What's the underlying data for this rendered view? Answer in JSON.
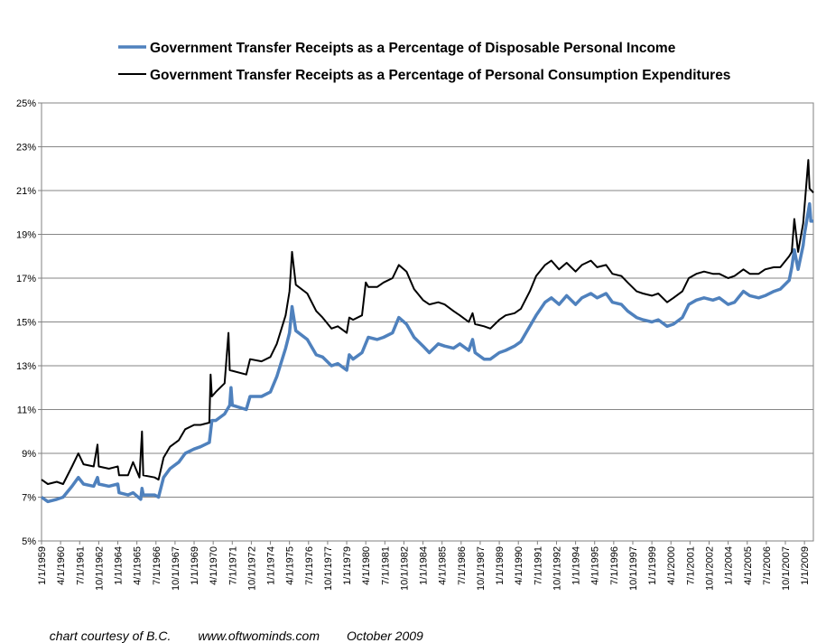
{
  "chart_data": {
    "type": "line",
    "title": "",
    "xlabel": "",
    "ylabel": "",
    "ylim": [
      5,
      25
    ],
    "yticks": [
      "5%",
      "7%",
      "9%",
      "11%",
      "13%",
      "15%",
      "17%",
      "19%",
      "21%",
      "23%",
      "25%"
    ],
    "xrange": [
      "1959-01",
      "2009-08"
    ],
    "xticks": [
      "1/1/1959",
      "4/1/1960",
      "7/1/1961",
      "10/1/1962",
      "1/1/1964",
      "4/1/1965",
      "7/1/1966",
      "10/1/1967",
      "1/1/1969",
      "4/1/1970",
      "7/1/1971",
      "10/1/1972",
      "1/1/1974",
      "4/1/1975",
      "7/1/1976",
      "10/1/1977",
      "1/1/1979",
      "4/1/1980",
      "7/1/1981",
      "10/1/1982",
      "1/1/1984",
      "4/1/1985",
      "7/1/1986",
      "10/1/1987",
      "1/1/1989",
      "4/1/1990",
      "7/1/1991",
      "10/1/1992",
      "1/1/1994",
      "4/1/1995",
      "7/1/1996",
      "10/1/1997",
      "1/1/1999",
      "4/1/2000",
      "7/1/2001",
      "10/1/2002",
      "1/1/2004",
      "4/1/2005",
      "7/1/2006",
      "10/1/2007",
      "1/1/2009"
    ],
    "grid": true,
    "legend_position": "top",
    "series": [
      {
        "name": "Government Transfer Receipts as a Percentage of Disposable Personal Income",
        "color": "#4f81bd",
        "points": [
          [
            "1959-01",
            7.0
          ],
          [
            "1959-06",
            6.8
          ],
          [
            "1960-01",
            6.9
          ],
          [
            "1960-06",
            7.0
          ],
          [
            "1961-01",
            7.5
          ],
          [
            "1961-06",
            7.9
          ],
          [
            "1961-10",
            7.6
          ],
          [
            "1962-06",
            7.5
          ],
          [
            "1962-09",
            7.9
          ],
          [
            "1962-10",
            7.6
          ],
          [
            "1963-06",
            7.5
          ],
          [
            "1964-01",
            7.6
          ],
          [
            "1964-02",
            7.2
          ],
          [
            "1964-09",
            7.1
          ],
          [
            "1965-01",
            7.2
          ],
          [
            "1965-07",
            6.9
          ],
          [
            "1965-08",
            7.4
          ],
          [
            "1965-09",
            7.1
          ],
          [
            "1966-06",
            7.1
          ],
          [
            "1966-09",
            7.0
          ],
          [
            "1967-01",
            7.9
          ],
          [
            "1967-06",
            8.3
          ],
          [
            "1968-01",
            8.6
          ],
          [
            "1968-06",
            9.0
          ],
          [
            "1969-01",
            9.2
          ],
          [
            "1969-06",
            9.3
          ],
          [
            "1970-01",
            9.5
          ],
          [
            "1970-03",
            10.5
          ],
          [
            "1970-06",
            10.5
          ],
          [
            "1971-01",
            10.8
          ],
          [
            "1971-05",
            11.2
          ],
          [
            "1971-06",
            12.0
          ],
          [
            "1971-07",
            11.2
          ],
          [
            "1972-06",
            11.0
          ],
          [
            "1972-09",
            11.6
          ],
          [
            "1973-06",
            11.6
          ],
          [
            "1974-01",
            11.8
          ],
          [
            "1974-06",
            12.5
          ],
          [
            "1975-01",
            13.8
          ],
          [
            "1975-04",
            14.5
          ],
          [
            "1975-06",
            15.7
          ],
          [
            "1975-09",
            14.6
          ],
          [
            "1976-06",
            14.2
          ],
          [
            "1977-01",
            13.5
          ],
          [
            "1977-06",
            13.4
          ],
          [
            "1978-01",
            13.0
          ],
          [
            "1978-06",
            13.1
          ],
          [
            "1979-01",
            12.8
          ],
          [
            "1979-03",
            13.5
          ],
          [
            "1979-06",
            13.3
          ],
          [
            "1980-01",
            13.6
          ],
          [
            "1980-06",
            14.3
          ],
          [
            "1981-01",
            14.2
          ],
          [
            "1981-06",
            14.3
          ],
          [
            "1982-01",
            14.5
          ],
          [
            "1982-06",
            15.2
          ],
          [
            "1982-12",
            14.9
          ],
          [
            "1983-06",
            14.3
          ],
          [
            "1984-01",
            13.9
          ],
          [
            "1984-06",
            13.6
          ],
          [
            "1985-01",
            14.0
          ],
          [
            "1985-06",
            13.9
          ],
          [
            "1986-01",
            13.8
          ],
          [
            "1986-06",
            14.0
          ],
          [
            "1987-01",
            13.7
          ],
          [
            "1987-04",
            14.2
          ],
          [
            "1987-06",
            13.6
          ],
          [
            "1988-01",
            13.3
          ],
          [
            "1988-06",
            13.3
          ],
          [
            "1989-01",
            13.6
          ],
          [
            "1989-06",
            13.7
          ],
          [
            "1990-01",
            13.9
          ],
          [
            "1990-06",
            14.1
          ],
          [
            "1991-01",
            14.8
          ],
          [
            "1991-06",
            15.3
          ],
          [
            "1992-01",
            15.9
          ],
          [
            "1992-06",
            16.1
          ],
          [
            "1992-12",
            15.8
          ],
          [
            "1993-06",
            16.2
          ],
          [
            "1994-01",
            15.8
          ],
          [
            "1994-06",
            16.1
          ],
          [
            "1995-01",
            16.3
          ],
          [
            "1995-06",
            16.1
          ],
          [
            "1996-01",
            16.3
          ],
          [
            "1996-06",
            15.9
          ],
          [
            "1997-01",
            15.8
          ],
          [
            "1997-06",
            15.5
          ],
          [
            "1998-01",
            15.2
          ],
          [
            "1998-06",
            15.1
          ],
          [
            "1999-01",
            15.0
          ],
          [
            "1999-06",
            15.1
          ],
          [
            "2000-01",
            14.8
          ],
          [
            "2000-06",
            14.9
          ],
          [
            "2001-01",
            15.2
          ],
          [
            "2001-06",
            15.8
          ],
          [
            "2001-12",
            16.0
          ],
          [
            "2002-06",
            16.1
          ],
          [
            "2003-01",
            16.0
          ],
          [
            "2003-06",
            16.1
          ],
          [
            "2004-01",
            15.8
          ],
          [
            "2004-06",
            15.9
          ],
          [
            "2005-01",
            16.4
          ],
          [
            "2005-06",
            16.2
          ],
          [
            "2006-01",
            16.1
          ],
          [
            "2006-06",
            16.2
          ],
          [
            "2007-01",
            16.4
          ],
          [
            "2007-06",
            16.5
          ],
          [
            "2008-01",
            16.9
          ],
          [
            "2008-03",
            17.5
          ],
          [
            "2008-05",
            18.3
          ],
          [
            "2008-08",
            17.4
          ],
          [
            "2008-12",
            18.5
          ],
          [
            "2009-01",
            19.0
          ],
          [
            "2009-05",
            20.4
          ],
          [
            "2009-06",
            19.6
          ],
          [
            "2009-08",
            19.6
          ]
        ]
      },
      {
        "name": "Government Transfer Receipts as a Percentage of Personal Consumption Expenditures",
        "color": "#000000",
        "points": [
          [
            "1959-01",
            7.8
          ],
          [
            "1959-06",
            7.6
          ],
          [
            "1960-01",
            7.7
          ],
          [
            "1960-06",
            7.6
          ],
          [
            "1961-01",
            8.4
          ],
          [
            "1961-06",
            9.0
          ],
          [
            "1961-10",
            8.5
          ],
          [
            "1962-06",
            8.4
          ],
          [
            "1962-09",
            9.4
          ],
          [
            "1962-10",
            8.4
          ],
          [
            "1963-06",
            8.3
          ],
          [
            "1964-01",
            8.4
          ],
          [
            "1964-02",
            8.0
          ],
          [
            "1964-09",
            8.0
          ],
          [
            "1965-01",
            8.6
          ],
          [
            "1965-06",
            7.9
          ],
          [
            "1965-08",
            10.0
          ],
          [
            "1965-09",
            8.0
          ],
          [
            "1966-06",
            7.9
          ],
          [
            "1966-09",
            7.8
          ],
          [
            "1967-01",
            8.8
          ],
          [
            "1967-06",
            9.3
          ],
          [
            "1968-01",
            9.6
          ],
          [
            "1968-06",
            10.1
          ],
          [
            "1969-01",
            10.3
          ],
          [
            "1969-06",
            10.3
          ],
          [
            "1970-01",
            10.4
          ],
          [
            "1970-02",
            12.6
          ],
          [
            "1970-03",
            11.6
          ],
          [
            "1970-06",
            11.8
          ],
          [
            "1971-01",
            12.2
          ],
          [
            "1971-04",
            14.5
          ],
          [
            "1971-05",
            12.8
          ],
          [
            "1972-06",
            12.6
          ],
          [
            "1972-09",
            13.3
          ],
          [
            "1973-06",
            13.2
          ],
          [
            "1974-01",
            13.4
          ],
          [
            "1974-06",
            14.0
          ],
          [
            "1975-01",
            15.3
          ],
          [
            "1975-04",
            16.4
          ],
          [
            "1975-06",
            18.2
          ],
          [
            "1975-09",
            16.7
          ],
          [
            "1976-06",
            16.3
          ],
          [
            "1977-01",
            15.5
          ],
          [
            "1977-06",
            15.2
          ],
          [
            "1978-01",
            14.7
          ],
          [
            "1978-06",
            14.8
          ],
          [
            "1979-01",
            14.5
          ],
          [
            "1979-03",
            15.2
          ],
          [
            "1979-06",
            15.1
          ],
          [
            "1980-01",
            15.3
          ],
          [
            "1980-04",
            16.8
          ],
          [
            "1980-06",
            16.6
          ],
          [
            "1981-01",
            16.6
          ],
          [
            "1981-06",
            16.8
          ],
          [
            "1982-01",
            17.0
          ],
          [
            "1982-06",
            17.6
          ],
          [
            "1982-12",
            17.3
          ],
          [
            "1983-06",
            16.5
          ],
          [
            "1984-01",
            16.0
          ],
          [
            "1984-06",
            15.8
          ],
          [
            "1985-01",
            15.9
          ],
          [
            "1985-06",
            15.8
          ],
          [
            "1986-01",
            15.5
          ],
          [
            "1986-06",
            15.3
          ],
          [
            "1987-01",
            15.0
          ],
          [
            "1987-04",
            15.4
          ],
          [
            "1987-06",
            14.9
          ],
          [
            "1988-01",
            14.8
          ],
          [
            "1988-06",
            14.7
          ],
          [
            "1989-01",
            15.1
          ],
          [
            "1989-06",
            15.3
          ],
          [
            "1990-01",
            15.4
          ],
          [
            "1990-06",
            15.6
          ],
          [
            "1991-01",
            16.4
          ],
          [
            "1991-06",
            17.1
          ],
          [
            "1992-01",
            17.6
          ],
          [
            "1992-06",
            17.8
          ],
          [
            "1992-12",
            17.4
          ],
          [
            "1993-06",
            17.7
          ],
          [
            "1994-01",
            17.3
          ],
          [
            "1994-06",
            17.6
          ],
          [
            "1995-01",
            17.8
          ],
          [
            "1995-06",
            17.5
          ],
          [
            "1996-01",
            17.6
          ],
          [
            "1996-06",
            17.2
          ],
          [
            "1997-01",
            17.1
          ],
          [
            "1997-06",
            16.8
          ],
          [
            "1998-01",
            16.4
          ],
          [
            "1998-06",
            16.3
          ],
          [
            "1999-01",
            16.2
          ],
          [
            "1999-06",
            16.3
          ],
          [
            "2000-01",
            15.9
          ],
          [
            "2000-06",
            16.1
          ],
          [
            "2001-01",
            16.4
          ],
          [
            "2001-06",
            17.0
          ],
          [
            "2001-12",
            17.2
          ],
          [
            "2002-06",
            17.3
          ],
          [
            "2003-01",
            17.2
          ],
          [
            "2003-06",
            17.2
          ],
          [
            "2004-01",
            17.0
          ],
          [
            "2004-06",
            17.1
          ],
          [
            "2005-01",
            17.4
          ],
          [
            "2005-06",
            17.2
          ],
          [
            "2006-01",
            17.2
          ],
          [
            "2006-06",
            17.4
          ],
          [
            "2007-01",
            17.5
          ],
          [
            "2007-06",
            17.5
          ],
          [
            "2008-01",
            18.0
          ],
          [
            "2008-03",
            18.2
          ],
          [
            "2008-05",
            19.7
          ],
          [
            "2008-08",
            18.2
          ],
          [
            "2008-12",
            19.5
          ],
          [
            "2009-01",
            20.2
          ],
          [
            "2009-04",
            22.4
          ],
          [
            "2009-05",
            21.1
          ],
          [
            "2009-08",
            20.9
          ]
        ]
      }
    ]
  },
  "footer": {
    "credit": "chart courtesy of B.C.",
    "website": "www.oftwominds.com",
    "date": "October 2009"
  }
}
